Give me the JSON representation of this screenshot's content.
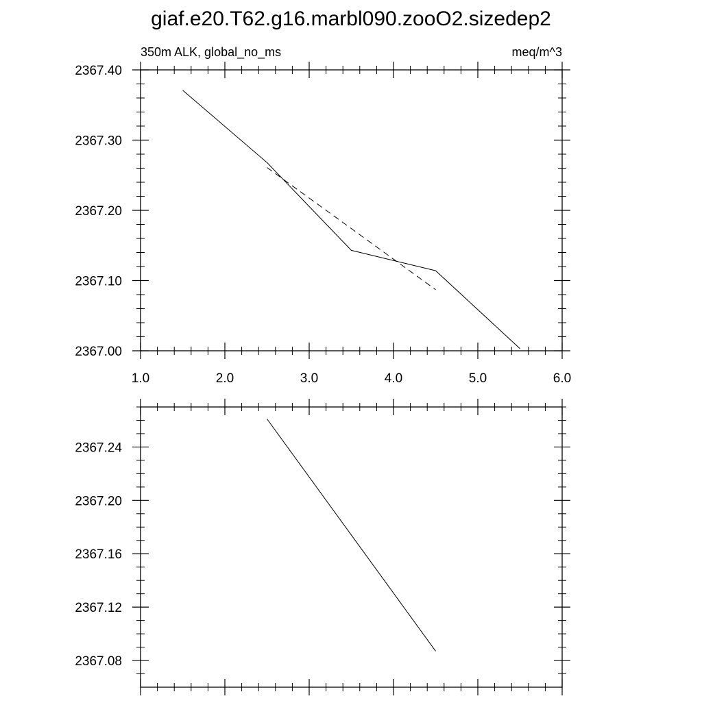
{
  "page": {
    "title": "giaf.e20.T62.g16.marbl090.zooO2.sizedep2"
  },
  "chart_data": [
    {
      "type": "line",
      "left_string": "350m ALK, global_no_ms",
      "right_string": "meq/m^3",
      "xlim": [
        1.0,
        6.0
      ],
      "ylim": [
        2367.0,
        2367.4
      ],
      "x_ticks": [
        1.0,
        2.0,
        3.0,
        4.0,
        5.0,
        6.0
      ],
      "x_tick_labels": [
        "1.0",
        "2.0",
        "3.0",
        "4.0",
        "5.0",
        "6.0"
      ],
      "y_ticks": [
        2367.0,
        2367.1,
        2367.2,
        2367.3,
        2367.4
      ],
      "y_tick_labels": [
        "2367.00",
        "2367.10",
        "2367.20",
        "2367.30",
        "2367.40"
      ],
      "grid": false,
      "series": [
        {
          "style": "solid",
          "color": "#000000",
          "x": [
            1.5,
            2.5,
            3.5,
            4.5,
            5.5
          ],
          "y": [
            2367.371,
            2367.268,
            2367.143,
            2367.114,
            2367.003
          ]
        },
        {
          "style": "dashed",
          "color": "#000000",
          "x": [
            2.5,
            4.5
          ],
          "y": [
            2367.261,
            2367.087
          ]
        }
      ]
    },
    {
      "type": "line",
      "xlim": [
        1.0,
        6.0
      ],
      "ylim": [
        2367.06,
        2367.27
      ],
      "x_ticks": [
        1.0,
        2.0,
        3.0,
        4.0,
        5.0,
        6.0
      ],
      "y_ticks": [
        2367.08,
        2367.12,
        2367.16,
        2367.2,
        2367.24
      ],
      "y_tick_labels": [
        "2367.08",
        "2367.12",
        "2367.16",
        "2367.20",
        "2367.24"
      ],
      "grid": false,
      "series": [
        {
          "style": "solid",
          "color": "#000000",
          "x": [
            2.5,
            4.5
          ],
          "y": [
            2367.261,
            2367.087
          ]
        }
      ]
    }
  ]
}
